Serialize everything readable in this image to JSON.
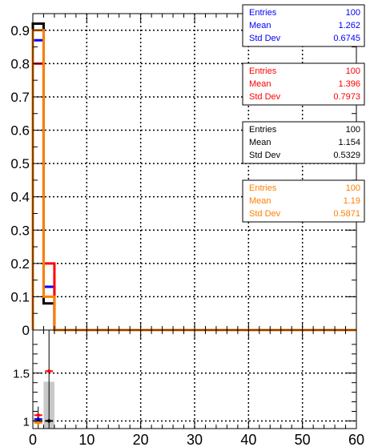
{
  "chart_data": [
    {
      "type": "bar",
      "panel": "upper",
      "xlim": [
        0,
        60
      ],
      "ylim": [
        0,
        0.95
      ],
      "grid": true,
      "y_ticks": [
        "0",
        "0.1",
        "0.2",
        "0.3",
        "0.4",
        "0.5",
        "0.6",
        "0.7",
        "0.8",
        "0.9"
      ],
      "x_ticks": [
        "0",
        "10",
        "20",
        "30",
        "40",
        "50",
        "60"
      ],
      "bin_edges": [
        0,
        2,
        4,
        6,
        8,
        10,
        12,
        14,
        16,
        18,
        20,
        22,
        24,
        26,
        28,
        30,
        32,
        34,
        36,
        38,
        40,
        42,
        44,
        46,
        48,
        50,
        52,
        54,
        56,
        58,
        60
      ],
      "series": [
        {
          "color": "#0000ff",
          "values": [
            0.87,
            0.13,
            0,
            0,
            0,
            0,
            0,
            0,
            0,
            0,
            0,
            0,
            0,
            0,
            0,
            0,
            0,
            0,
            0,
            0,
            0,
            0,
            0,
            0,
            0,
            0,
            0,
            0,
            0,
            0
          ]
        },
        {
          "color": "#ff0000",
          "values": [
            0.8,
            0.2,
            0,
            0,
            0,
            0,
            0,
            0,
            0,
            0,
            0,
            0,
            0,
            0,
            0,
            0,
            0,
            0,
            0,
            0,
            0,
            0,
            0,
            0,
            0,
            0,
            0,
            0,
            0,
            0
          ]
        },
        {
          "color": "#000000",
          "values": [
            0.92,
            0.08,
            0,
            0,
            0,
            0,
            0,
            0,
            0,
            0,
            0,
            0,
            0,
            0,
            0,
            0,
            0,
            0,
            0,
            0,
            0,
            0,
            0,
            0,
            0,
            0,
            0,
            0,
            0,
            0
          ]
        },
        {
          "color": "#ff7f00",
          "values": [
            0.9,
            0.1,
            0,
            0,
            0,
            0,
            0,
            0,
            0,
            0,
            0,
            0,
            0,
            0,
            0,
            0,
            0,
            0,
            0,
            0,
            0,
            0,
            0,
            0,
            0,
            0,
            0,
            0,
            0,
            0
          ]
        }
      ],
      "stat_boxes": [
        {
          "color": "#0000ff",
          "rows": [
            [
              "Entries",
              "100"
            ],
            [
              "Mean",
              "1.262"
            ],
            [
              "Std Dev",
              "0.6745"
            ]
          ]
        },
        {
          "color": "#ff0000",
          "rows": [
            [
              "Entries",
              "100"
            ],
            [
              "Mean",
              "1.396"
            ],
            [
              "Std Dev",
              "0.7973"
            ]
          ]
        },
        {
          "color": "#000000",
          "rows": [
            [
              "Entries",
              "100"
            ],
            [
              "Mean",
              "1.154"
            ],
            [
              "Std Dev",
              "0.5329"
            ]
          ]
        },
        {
          "color": "#ff7f00",
          "rows": [
            [
              "Entries",
              "100"
            ],
            [
              "Mean",
              "1.19"
            ],
            [
              "Std Dev",
              "0.5871"
            ]
          ]
        }
      ]
    },
    {
      "type": "scatter",
      "panel": "ratio",
      "xlim": [
        0,
        60
      ],
      "ylim": [
        0.92,
        1.95
      ],
      "grid": true,
      "y_ticks": [
        "1",
        "1.5"
      ],
      "x_ticks": [
        "0",
        "10",
        "20",
        "30",
        "40",
        "50",
        "60"
      ],
      "band": {
        "x": [
          2,
          4
        ],
        "y": [
          0.92,
          1.41
        ],
        "color": "#c8c8c8"
      },
      "points": [
        {
          "x": 1,
          "y": 1.06,
          "color": "#ff0000"
        },
        {
          "x": 1,
          "y": 1.02,
          "color": "#0000ff"
        },
        {
          "x": 1,
          "y": 1.0,
          "color": "#000000"
        },
        {
          "x": 1,
          "y": 0.98,
          "color": "#ff7f00"
        },
        {
          "x": 3,
          "y": 1.52,
          "color": "#ff0000"
        },
        {
          "x": 3,
          "y": 1.0,
          "color": "#000000"
        }
      ]
    }
  ]
}
